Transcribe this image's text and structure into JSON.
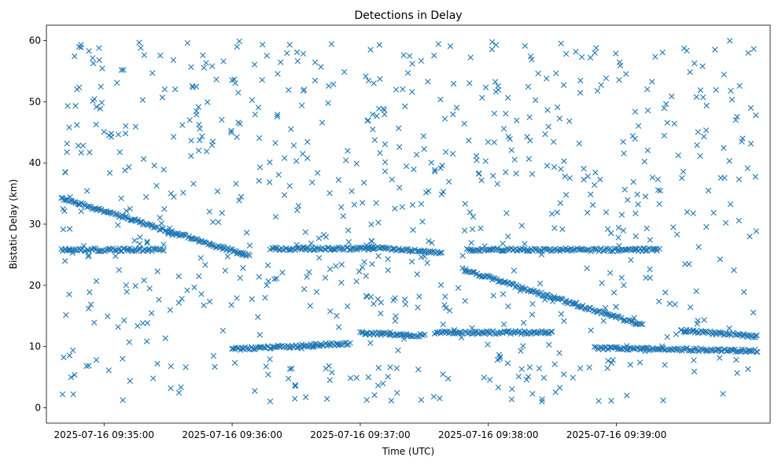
{
  "chart_data": {
    "type": "scatter",
    "title": "Detections in Delay",
    "xlabel": "Time (UTC)",
    "ylabel": "Bistatic Delay (km)",
    "x_ticks": [
      "2025-07-16 09:35:00",
      "2025-07-16 09:36:00",
      "2025-07-16 09:37:00",
      "2025-07-16 09:38:00",
      "2025-07-16 09:39:00"
    ],
    "y_ticks": [
      0,
      10,
      20,
      30,
      40,
      50,
      60
    ],
    "xlim": [
      "2025-07-16 09:34:33",
      "2025-07-16 09:40:12"
    ],
    "ylim": [
      -2.5,
      62.5
    ],
    "grid": false,
    "marker": "x",
    "color": "#1f77b4",
    "tracks": [
      {
        "x_start": "2025-07-16 09:34:40",
        "x_end": "2025-07-16 09:36:08",
        "y_start": 34.3,
        "y_end": 24.8
      },
      {
        "x_start": "2025-07-16 09:36:18",
        "x_end": "2025-07-16 09:37:06",
        "y_start": 26.0,
        "y_end": 26.0
      },
      {
        "x_start": "2025-07-16 09:37:03",
        "x_end": "2025-07-16 09:37:38",
        "y_start": 26.3,
        "y_end": 25.4
      },
      {
        "x_start": "2025-07-16 09:37:48",
        "x_end": "2025-07-16 09:39:12",
        "y_start": 22.6,
        "y_end": 13.5
      },
      {
        "x_start": "2025-07-16 09:39:30",
        "x_end": "2025-07-16 09:40:06",
        "y_start": 12.6,
        "y_end": 11.7
      },
      {
        "x_start": "2025-07-16 09:36:00",
        "x_end": "2025-07-16 09:36:55",
        "y_start": 9.6,
        "y_end": 10.5
      },
      {
        "x_start": "2025-07-16 09:37:00",
        "x_end": "2025-07-16 09:37:30",
        "y_start": 12.2,
        "y_end": 11.8
      },
      {
        "x_start": "2025-07-16 09:37:35",
        "x_end": "2025-07-16 09:38:30",
        "y_start": 12.3,
        "y_end": 12.3
      },
      {
        "x_start": "2025-07-16 09:38:50",
        "x_end": "2025-07-16 09:40:06",
        "y_start": 9.8,
        "y_end": 9.3
      },
      {
        "x_start": "2025-07-16 09:34:40",
        "x_end": "2025-07-16 09:35:28",
        "y_start": 25.8,
        "y_end": 25.8
      },
      {
        "x_start": "2025-07-16 09:37:50",
        "x_end": "2025-07-16 09:39:20",
        "y_start": 25.8,
        "y_end": 25.8
      }
    ],
    "clutter_count": 780
  }
}
